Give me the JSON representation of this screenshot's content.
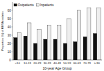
{
  "chart_data": {
    "type": "bar",
    "categories": [
      "<10",
      "10-19",
      "20-29",
      "30-39",
      "40-49",
      "50-59",
      "60-69",
      "70-79",
      "≥ 80"
    ],
    "series": [
      {
        "name": "Outpatients",
        "color": "#111111",
        "values": [
          27,
          29,
          20,
          25,
          25,
          20,
          22,
          28,
          32
        ]
      },
      {
        "name": "Inpatients",
        "color": "#eeeeee",
        "values": [
          33,
          45,
          37,
          42,
          42,
          50,
          60,
          63,
          63
        ]
      }
    ],
    "xlabel": "10-year Age Group",
    "ylabel": "Proportion (%) of MRSA isolates",
    "ylim": [
      0,
      70
    ],
    "yticks": [
      0,
      10,
      20,
      30,
      40,
      50,
      60
    ],
    "legend": "upper left",
    "grid": false
  }
}
